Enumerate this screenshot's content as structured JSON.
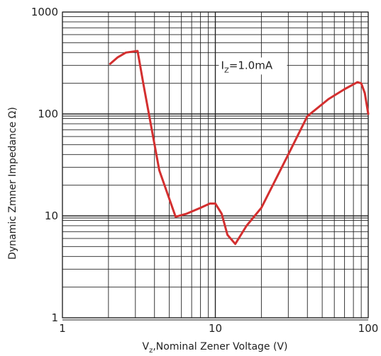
{
  "chart_data": {
    "type": "line",
    "xscale": "log",
    "yscale": "log",
    "xlim": [
      1,
      100
    ],
    "ylim": [
      1,
      1000
    ],
    "grid": true,
    "xlabel_main": "V",
    "xlabel_sub": "z",
    "xlabel_rest": ",Nominal Zener Voltage (V)",
    "ylabel": "Dynamic Zmner Impedance Ω)",
    "x_ticks": [
      {
        "value": 1,
        "label": "1"
      },
      {
        "value": 10,
        "label": "10"
      },
      {
        "value": 100,
        "label": "100"
      }
    ],
    "y_ticks": [
      {
        "value": 1,
        "label": "1"
      },
      {
        "value": 10,
        "label": "10"
      },
      {
        "value": 100,
        "label": "100"
      },
      {
        "value": 1000,
        "label": "1000"
      }
    ],
    "annotation": {
      "main": "I",
      "sub": "Z",
      "rest": "=1.0mA",
      "x": 10,
      "y": 300
    },
    "series": [
      {
        "color": "#d32f2f",
        "points": [
          [
            2.05,
            310
          ],
          [
            2.3,
            360
          ],
          [
            2.6,
            400
          ],
          [
            3.1,
            415
          ],
          [
            3.4,
            190
          ],
          [
            4.3,
            28
          ],
          [
            5.5,
            9.8
          ],
          [
            6.5,
            10.5
          ],
          [
            8.0,
            12
          ],
          [
            9.2,
            13.2
          ],
          [
            10.0,
            13.2
          ],
          [
            11.0,
            10.5
          ],
          [
            12.0,
            6.5
          ],
          [
            13.5,
            5.3
          ],
          [
            16.0,
            8.0
          ],
          [
            20.0,
            12.0
          ],
          [
            30.0,
            40.0
          ],
          [
            40.0,
            95.0
          ],
          [
            55.0,
            140.0
          ],
          [
            70.0,
            175.0
          ],
          [
            85.0,
            205.0
          ],
          [
            90.0,
            200.0
          ],
          [
            95.0,
            160.0
          ],
          [
            100.0,
            100.0
          ]
        ]
      }
    ]
  }
}
